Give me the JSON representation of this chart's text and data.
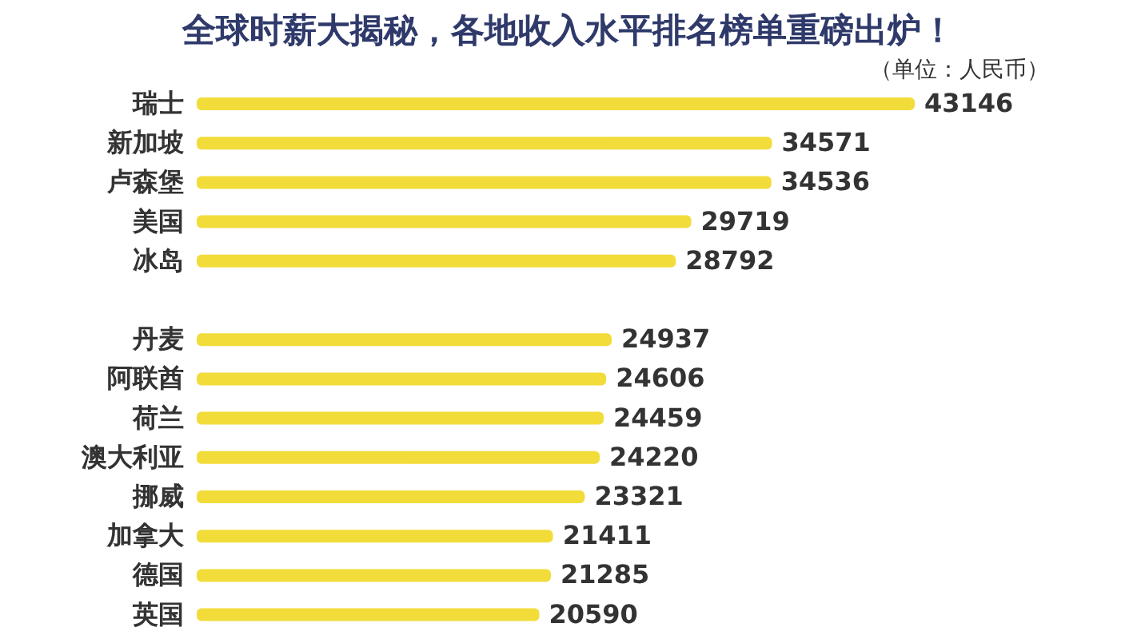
{
  "chart_data": {
    "type": "bar",
    "orientation": "horizontal",
    "title": "全球时薪大揭秘，各地收入水平排名榜单重磅出炉！",
    "annotations": [
      "（单位：人民币）"
    ],
    "categories": [
      "瑞士",
      "新加坡",
      "卢森堡",
      "美国",
      "冰岛",
      null,
      "丹麦",
      "阿联酋",
      "荷兰",
      "澳大利亚",
      "挪威",
      "加拿大",
      "德国",
      "英国"
    ],
    "values": [
      43146,
      34571,
      34536,
      29719,
      28792,
      null,
      24937,
      24606,
      24459,
      24220,
      23321,
      21411,
      21285,
      20590
    ],
    "color": "#f2dc3a",
    "data_labels": true
  }
}
